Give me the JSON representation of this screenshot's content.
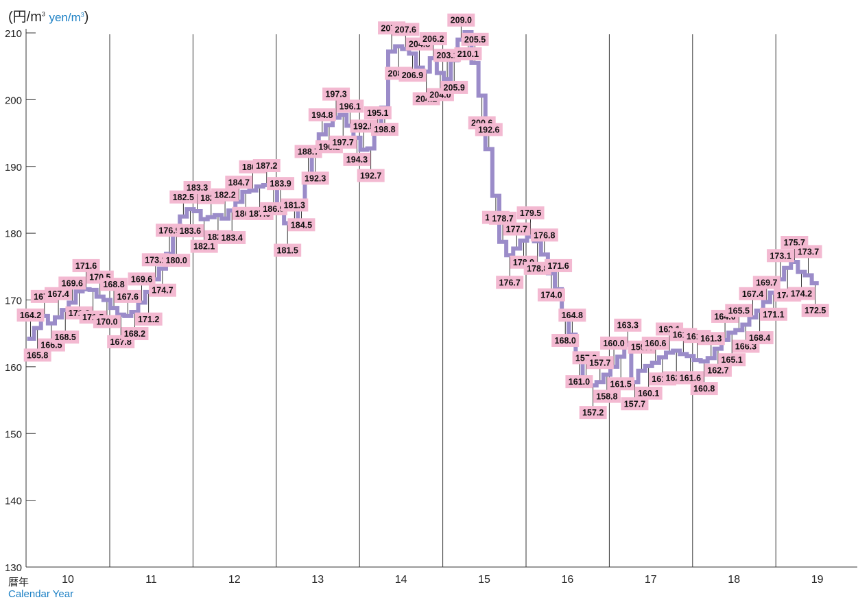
{
  "units": {
    "jp": "(円/m",
    "jp_sup": "3",
    "en": "yen/m",
    "en_sup": "3"
  },
  "xaxis": {
    "label_jp": "暦年",
    "label_en": "Calendar Year"
  },
  "colors": {
    "line": "#9b8cc9",
    "label_bg": "#f3b9d1",
    "text": "#111111",
    "grid": "#333333"
  },
  "chart_data": {
    "type": "line",
    "step": true,
    "ylim": [
      130,
      210
    ],
    "yticks": [
      130,
      140,
      150,
      160,
      170,
      180,
      190,
      200,
      210
    ],
    "xticks": [
      "10",
      "11",
      "12",
      "13",
      "14",
      "15",
      "16",
      "17",
      "18",
      "19"
    ],
    "year_dividers_after": [
      "10",
      "11",
      "12",
      "13",
      "14",
      "15",
      "16",
      "17",
      "18"
    ],
    "grid": false,
    "series": [
      {
        "values": [
          164.2,
          165.8,
          167.6,
          166.5,
          167.4,
          168.5,
          169.6,
          171.3,
          171.6,
          171.5,
          170.5,
          170.0,
          168.8,
          167.8,
          167.6,
          168.2,
          169.6,
          171.2,
          173.1,
          174.7,
          176.9,
          180.0,
          182.5,
          183.6,
          183.3,
          182.1,
          182.4,
          182.7,
          182.2,
          183.4,
          184.7,
          186.2,
          186.4,
          187.0,
          187.2,
          186.9,
          183.9,
          181.5,
          181.3,
          184.5,
          188.7,
          192.3,
          194.8,
          196.2,
          197.3,
          197.7,
          196.1,
          194.3,
          192.5,
          192.7,
          195.1,
          198.8,
          207.2,
          208.0,
          207.6,
          206.9,
          204.8,
          204.2,
          206.2,
          204.0,
          203.1,
          205.9,
          209.0,
          210.1,
          205.5,
          200.6,
          192.6,
          185.6,
          178.7,
          176.7,
          177.7,
          178.9,
          179.5,
          178.8,
          176.8,
          174.0,
          171.6,
          168.0,
          164.8,
          161.0,
          157.8,
          157.2,
          157.7,
          158.8,
          160.0,
          161.5,
          163.3,
          157.7,
          159.4,
          160.1,
          160.6,
          161.4,
          162.1,
          162.4,
          161.9,
          161.6,
          161.0,
          160.8,
          161.3,
          162.7,
          164.0,
          165.1,
          165.5,
          166.3,
          167.4,
          168.4,
          169.7,
          171.1,
          173.1,
          174.8,
          175.7,
          174.2,
          173.7,
          172.5
        ],
        "labels": [
          "164.2",
          "165.8",
          "167.6",
          "166.5",
          "167.4",
          "168.5",
          "169.6",
          "171.3",
          "171.6",
          "171.5",
          "170.5",
          "170.0",
          "168.8",
          "167.8",
          "167.6",
          "168.2",
          "169.6",
          "171.2",
          "173.1",
          "174.7",
          "176.9",
          "180.0",
          "182.5",
          "183.6",
          "183.3",
          "182.1",
          "182.4",
          "182.7",
          "182.2",
          "183.4",
          "184.7",
          "186.2",
          "186.4",
          "187.0",
          "187.2",
          "186.9",
          "183.9",
          "181.5",
          "181.3",
          "184.5",
          "188.7",
          "192.3",
          "194.8",
          "196.2",
          "197.3",
          "197.7",
          "196.1",
          "194.3",
          "192.5",
          "192.7",
          "195.1",
          "198.8",
          "207.2",
          "208.0",
          "207.6",
          "206.9",
          "204.8",
          "204.2",
          "206.2",
          "204.0",
          "203.1",
          "205.9",
          "209.0",
          "210.1",
          "205.5",
          "200.6",
          "192.6",
          "185.6",
          "178.7",
          "176.7",
          "177.7",
          "178.9",
          "179.5",
          "178.8",
          "176.8",
          "174.0",
          "171.6",
          "168.0",
          "164.8",
          "161.0",
          "157.8",
          "157.2",
          "157.7",
          "158.8",
          "160.0",
          "161.5",
          "163.3",
          "157.7",
          "159.4",
          "160.1",
          "160.6",
          "161.4",
          "162.1",
          "162.4",
          "161.9",
          "161.6",
          "161.0",
          "160.8",
          "161.3",
          "162.7",
          "164.0",
          "165.1",
          "165.5",
          "166.3",
          "167.4",
          "168.4",
          "169.7",
          "171.1",
          "173.1",
          "174.8",
          "175.7",
          "174.2",
          "173.7",
          "172.5"
        ]
      }
    ]
  }
}
